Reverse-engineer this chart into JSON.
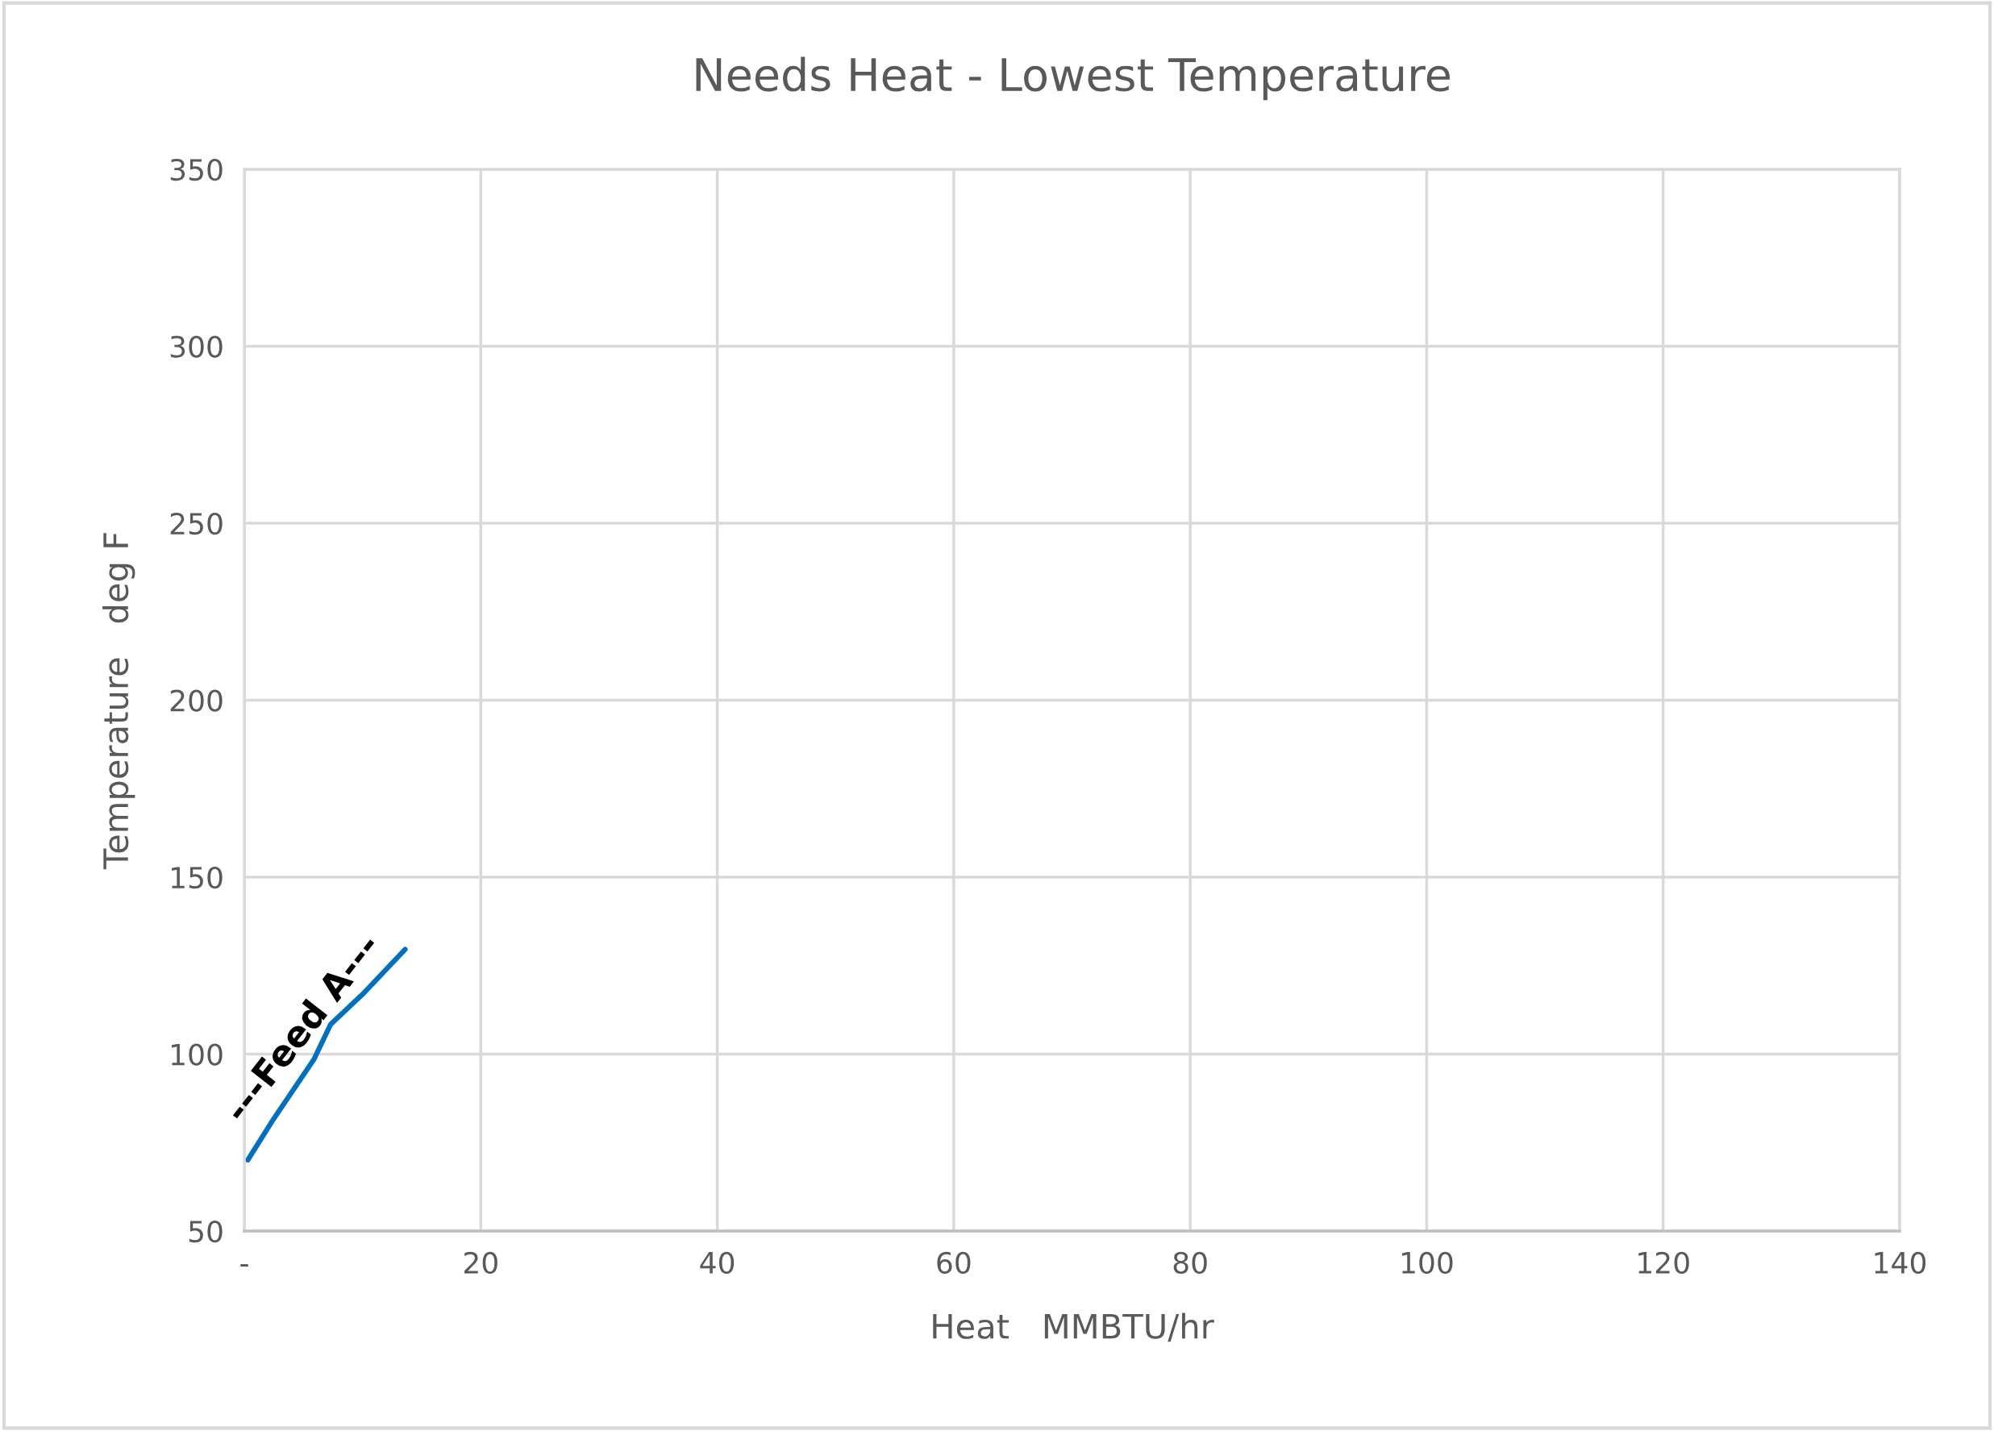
{
  "chart_data": {
    "type": "line",
    "title": "Needs Heat - Lowest Temperature",
    "xlabel": "Heat   MMBTU/hr",
    "ylabel": "Temperature   deg F",
    "x": [
      0.3,
      2.5,
      5.9,
      7.3,
      10.0,
      13.6
    ],
    "series": [
      {
        "color": "#0070c0",
        "values": [
          70.1,
          81.8,
          98.6,
          108.4,
          116.9,
          129.6
        ]
      }
    ],
    "annotations": [
      "---Feed A---"
    ],
    "xlim": [
      0,
      140
    ],
    "xticks": [
      {
        "value": 0,
        "label": "-"
      },
      20,
      40,
      60,
      80,
      100,
      120,
      140
    ],
    "ylim": [
      50,
      350
    ],
    "yticks": [
      50,
      100,
      150,
      200,
      250,
      300,
      350
    ],
    "grid": true,
    "marker": "none"
  }
}
